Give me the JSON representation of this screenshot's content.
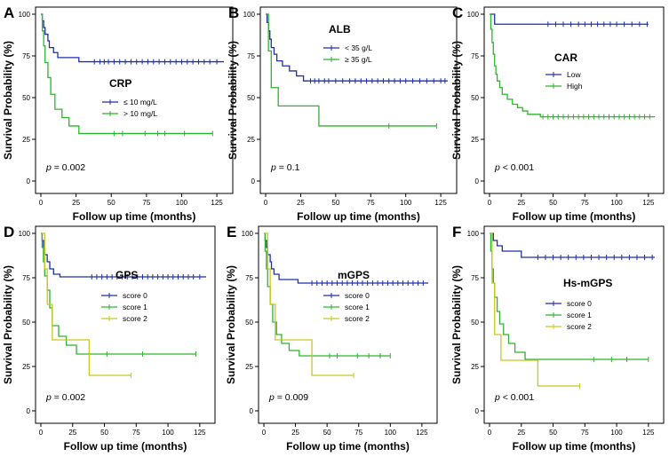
{
  "colors": {
    "blue": "#1f2fa8",
    "green": "#2db52d",
    "yellow": "#c8c81e",
    "axis": "#000000"
  },
  "chart_data": [
    {
      "type": "line",
      "panel_label": "A",
      "title": "CRP",
      "xlabel": "Follow up time (months)",
      "ylabel": "Survival Probability (%)",
      "xlim": [
        0,
        130
      ],
      "ylim": [
        0,
        100
      ],
      "xticks": [
        "0",
        "25",
        "50",
        "75",
        "100",
        "125"
      ],
      "yticks": [
        "0",
        "25",
        "50",
        "75",
        "100"
      ],
      "p_prefix": "p",
      "p_text": " = 0.002",
      "legend_position": "center-right",
      "series": [
        {
          "name": "≤  10 mg/L",
          "color": "blue",
          "steps": [
            [
              0,
              100
            ],
            [
              1,
              96
            ],
            [
              2,
              92
            ],
            [
              3,
              88
            ],
            [
              5,
              84
            ],
            [
              6,
              80
            ],
            [
              9,
              77
            ],
            [
              12,
              74
            ],
            [
              27,
              71.5
            ],
            [
              130,
              71.5
            ]
          ],
          "censors": [
            38,
            42,
            45,
            48,
            52,
            56,
            60,
            64,
            68,
            72,
            76,
            80,
            84,
            88,
            92,
            96,
            100,
            104,
            108,
            112,
            116,
            120,
            125
          ]
        },
        {
          "name": "> 10 mg/L",
          "color": "green",
          "steps": [
            [
              0,
              100
            ],
            [
              1,
              90
            ],
            [
              2,
              81
            ],
            [
              3,
              71
            ],
            [
              5,
              62
            ],
            [
              7,
              52
            ],
            [
              10,
              43
            ],
            [
              15,
              38
            ],
            [
              20,
              33
            ],
            [
              27,
              28.5
            ],
            [
              122,
              28.5
            ]
          ],
          "censors": [
            52,
            58,
            74,
            83,
            88,
            102,
            122
          ]
        }
      ]
    },
    {
      "type": "line",
      "panel_label": "B",
      "title": "ALB",
      "xlabel": "Follow up time (months)",
      "ylabel": "Survival Probability (%)",
      "xlim": [
        0,
        130
      ],
      "ylim": [
        0,
        100
      ],
      "xticks": [
        "0",
        "25",
        "50",
        "75",
        "100",
        "125"
      ],
      "yticks": [
        "0",
        "25",
        "50",
        "75",
        "100"
      ],
      "p_prefix": "p",
      "p_text": " = 0.1",
      "legend_position": "top-right",
      "series": [
        {
          "name": "< 35 g/L",
          "color": "blue",
          "steps": [
            [
              0,
              100
            ],
            [
              1,
              95
            ],
            [
              2,
              90
            ],
            [
              3,
              85
            ],
            [
              4,
              80
            ],
            [
              6,
              76
            ],
            [
              8,
              72
            ],
            [
              12,
              69
            ],
            [
              17,
              66
            ],
            [
              22,
              63
            ],
            [
              27,
              60
            ],
            [
              130,
              60
            ]
          ],
          "censors": [
            32,
            35,
            38,
            42,
            45,
            50,
            55,
            60,
            64,
            68,
            72,
            76,
            80,
            84,
            88,
            92,
            96,
            100,
            105,
            110,
            115,
            120,
            125,
            128
          ]
        },
        {
          "name": "≥  35 g/L",
          "color": "green",
          "steps": [
            [
              0,
              100
            ],
            [
              2,
              78
            ],
            [
              4,
              56
            ],
            [
              9,
              45
            ],
            [
              38,
              33
            ],
            [
              122,
              33
            ]
          ],
          "censors": [
            88,
            122
          ]
        }
      ]
    },
    {
      "type": "line",
      "panel_label": "C",
      "title": "CAR",
      "xlabel": "Follow up time (months)",
      "ylabel": "Survival Probability (%)",
      "xlim": [
        0,
        130
      ],
      "ylim": [
        0,
        100
      ],
      "xticks": [
        "0",
        "25",
        "50",
        "75",
        "100",
        "125"
      ],
      "yticks": [
        "0",
        "25",
        "50",
        "75",
        "100"
      ],
      "p_prefix": "p",
      "p_text": " < 0.001",
      "legend_position": "center-right",
      "series": [
        {
          "name": "Low",
          "color": "blue",
          "steps": [
            [
              0,
              100
            ],
            [
              4,
              94
            ],
            [
              125,
              94
            ]
          ],
          "censors": [
            46,
            52,
            58,
            64,
            70,
            75,
            80,
            85,
            90,
            95,
            100,
            106,
            112,
            118,
            124
          ]
        },
        {
          "name": "High",
          "color": "green",
          "steps": [
            [
              0,
              100
            ],
            [
              1,
              91
            ],
            [
              2,
              83
            ],
            [
              3,
              76
            ],
            [
              4,
              69
            ],
            [
              5,
              64
            ],
            [
              6,
              60
            ],
            [
              8,
              56
            ],
            [
              10,
              52
            ],
            [
              14,
              49
            ],
            [
              18,
              46
            ],
            [
              22,
              44
            ],
            [
              26,
              42
            ],
            [
              30,
              40
            ],
            [
              40,
              38.5
            ],
            [
              130,
              38.5
            ]
          ],
          "censors": [
            42,
            46,
            50,
            54,
            58,
            62,
            66,
            70,
            74,
            78,
            82,
            86,
            90,
            94,
            98,
            102,
            106,
            110,
            114,
            118,
            122,
            126
          ]
        }
      ]
    },
    {
      "type": "line",
      "panel_label": "D",
      "title": "GPS",
      "xlabel": "Follow up time (months)",
      "ylabel": "Survival Probability (%)",
      "xlim": [
        0,
        130
      ],
      "ylim": [
        0,
        100
      ],
      "xticks": [
        "0",
        "25",
        "50",
        "75",
        "100",
        "125"
      ],
      "yticks": [
        "0",
        "25",
        "50",
        "75",
        "100"
      ],
      "p_prefix": "p",
      "p_text": " = 0.002",
      "legend_position": "center-right",
      "series": [
        {
          "name": "score 0",
          "color": "blue",
          "steps": [
            [
              0,
              100
            ],
            [
              1,
              96
            ],
            [
              2,
              92
            ],
            [
              3,
              88
            ],
            [
              5,
              84
            ],
            [
              7,
              80
            ],
            [
              10,
              77
            ],
            [
              15,
              75.5
            ],
            [
              130,
              75.5
            ]
          ],
          "censors": [
            40,
            44,
            48,
            52,
            56,
            60,
            64,
            68,
            72,
            76,
            80,
            84,
            88,
            92,
            96,
            100,
            104,
            108,
            112,
            116,
            120,
            125
          ]
        },
        {
          "name": "score 1",
          "color": "green",
          "steps": [
            [
              0,
              100
            ],
            [
              1,
              92
            ],
            [
              2,
              84
            ],
            [
              3,
              76
            ],
            [
              5,
              68
            ],
            [
              7,
              58
            ],
            [
              9,
              48
            ],
            [
              14,
              42
            ],
            [
              20,
              37
            ],
            [
              28,
              32
            ],
            [
              122,
              32
            ]
          ],
          "censors": [
            52,
            80,
            122
          ]
        },
        {
          "name": "score 2",
          "color": "yellow",
          "steps": [
            [
              0,
              100
            ],
            [
              3,
              80
            ],
            [
              5,
              60
            ],
            [
              9,
              40
            ],
            [
              38,
              20
            ],
            [
              71,
              20
            ]
          ],
          "censors": [
            71
          ]
        }
      ]
    },
    {
      "type": "line",
      "panel_label": "E",
      "title": "mGPS",
      "xlabel": "Follow up time (months)",
      "ylabel": "Survival Probability (%)",
      "xlim": [
        0,
        130
      ],
      "ylim": [
        0,
        100
      ],
      "xticks": [
        "0",
        "25",
        "50",
        "75",
        "100",
        "125"
      ],
      "yticks": [
        "0",
        "25",
        "50",
        "75",
        "100"
      ],
      "p_prefix": "p",
      "p_text": " = 0.009",
      "legend_position": "center-right",
      "series": [
        {
          "name": "score 0",
          "color": "blue",
          "steps": [
            [
              0,
              100
            ],
            [
              1,
              96
            ],
            [
              2,
              92
            ],
            [
              3,
              88
            ],
            [
              5,
              84
            ],
            [
              6,
              80
            ],
            [
              8,
              77
            ],
            [
              12,
              74
            ],
            [
              27,
              72
            ],
            [
              130,
              72
            ]
          ],
          "censors": [
            38,
            42,
            46,
            50,
            54,
            58,
            62,
            66,
            70,
            74,
            78,
            82,
            86,
            90,
            94,
            98,
            102,
            106,
            110,
            114,
            118,
            122,
            126
          ]
        },
        {
          "name": "score 1",
          "color": "green",
          "steps": [
            [
              0,
              100
            ],
            [
              1,
              90
            ],
            [
              2,
              80
            ],
            [
              3,
              70
            ],
            [
              5,
              60
            ],
            [
              7,
              50
            ],
            [
              10,
              43
            ],
            [
              14,
              38
            ],
            [
              20,
              34
            ],
            [
              28,
              31
            ],
            [
              100,
              31
            ]
          ],
          "censors": [
            52,
            58,
            74,
            83,
            92,
            100
          ]
        },
        {
          "name": "score 2",
          "color": "yellow",
          "steps": [
            [
              0,
              100
            ],
            [
              3,
              80
            ],
            [
              5,
              60
            ],
            [
              9,
              40
            ],
            [
              38,
              20
            ],
            [
              71,
              20
            ]
          ],
          "censors": [
            71
          ]
        }
      ]
    },
    {
      "type": "line",
      "panel_label": "F",
      "title": "Hs-mGPS",
      "xlabel": "Follow up time (months)",
      "ylabel": "Survival Probability (%)",
      "xlim": [
        0,
        130
      ],
      "ylim": [
        0,
        100
      ],
      "xticks": [
        "0",
        "25",
        "50",
        "75",
        "100",
        "125"
      ],
      "yticks": [
        "0",
        "25",
        "50",
        "75",
        "100"
      ],
      "p_prefix": "p",
      "p_text": " < 0.001",
      "legend_position": "center-right",
      "series": [
        {
          "name": "score 0",
          "color": "blue",
          "steps": [
            [
              0,
              100
            ],
            [
              3,
              96
            ],
            [
              6,
              93
            ],
            [
              10,
              90
            ],
            [
              25,
              86.5
            ],
            [
              130,
              86.5
            ]
          ],
          "censors": [
            38,
            44,
            50,
            56,
            62,
            68,
            74,
            80,
            86,
            92,
            98,
            104,
            110,
            116,
            122,
            128
          ]
        },
        {
          "name": "score 1",
          "color": "green",
          "steps": [
            [
              0,
              100
            ],
            [
              1,
              90
            ],
            [
              2,
              80
            ],
            [
              3,
              72
            ],
            [
              4,
              64
            ],
            [
              6,
              56
            ],
            [
              8,
              49
            ],
            [
              11,
              43
            ],
            [
              15,
              38
            ],
            [
              20,
              33
            ],
            [
              28,
              29
            ],
            [
              125,
              29
            ]
          ],
          "censors": [
            82,
            96,
            108,
            125
          ]
        },
        {
          "name": "score 2",
          "color": "yellow",
          "steps": [
            [
              0,
              100
            ],
            [
              2,
              72
            ],
            [
              4,
              43
            ],
            [
              9,
              28.5
            ],
            [
              38,
              14
            ],
            [
              71,
              14
            ]
          ],
          "censors": [
            71
          ]
        }
      ]
    }
  ]
}
